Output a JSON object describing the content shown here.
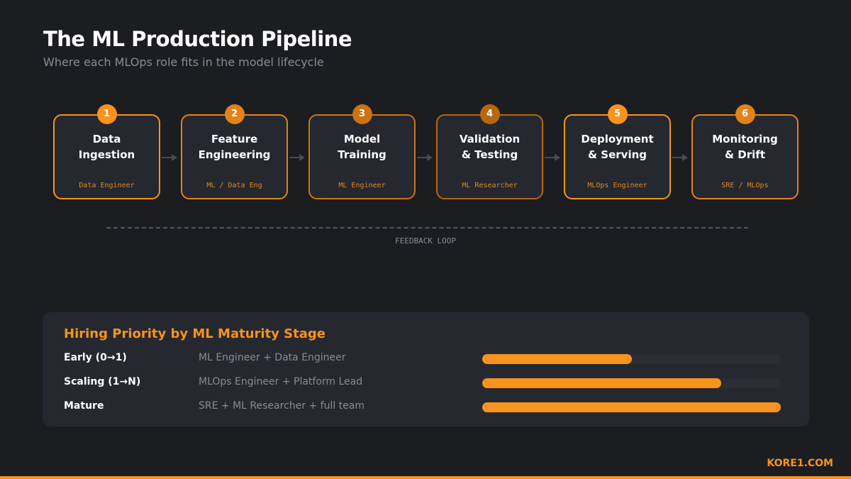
{
  "header": {
    "title": "The ML Production Pipeline",
    "subtitle": "Where each MLOps role fits in the model lifecycle"
  },
  "pipeline": {
    "stages": [
      {
        "number": "1",
        "name": "Data\nIngestion",
        "role": "Data Engineer",
        "color": "#f7931e"
      },
      {
        "number": "2",
        "name": "Feature\nEngineering",
        "role": "ML / Data Eng",
        "color": "#e2821a"
      },
      {
        "number": "3",
        "name": "Model\nTraining",
        "role": "ML Engineer",
        "color": "#cc7314"
      },
      {
        "number": "4",
        "name": "Validation\n& Testing",
        "role": "ML Researcher",
        "color": "#b86710"
      },
      {
        "number": "5",
        "name": "Deployment\n& Serving",
        "role": "MLOps Engineer",
        "color": "#f7931e"
      },
      {
        "number": "6",
        "name": "Monitoring\n& Drift",
        "role": "SRE / MLOps",
        "color": "#e2821a"
      }
    ],
    "feedback_label": "FEEDBACK LOOP"
  },
  "hiring": {
    "title": "Hiring Priority by ML Maturity Stage",
    "rows": [
      {
        "stage": "Early (0→1)",
        "roles": "ML Engineer + Data Engineer",
        "priority_pct": 50
      },
      {
        "stage": "Scaling (1→N)",
        "roles": "MLOps Engineer + Platform Lead",
        "priority_pct": 80
      },
      {
        "stage": "Mature",
        "roles": "SRE + ML Researcher + full team",
        "priority_pct": 100
      }
    ]
  },
  "brand": "KORE1.COM",
  "colors": {
    "accent": "#f7931e",
    "background": "#1c1d21",
    "panel": "#262830"
  }
}
